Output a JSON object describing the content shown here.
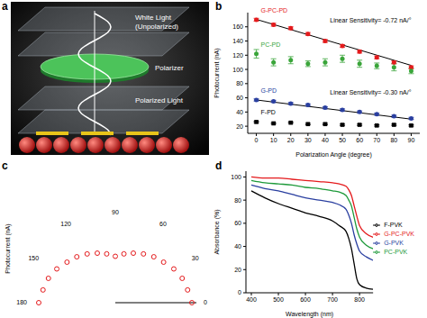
{
  "chart_data": [
    {
      "type": "diagram",
      "panel": "a",
      "labels": [
        "White Light (Unpolarized)",
        "Polarizer",
        "Polarized Light"
      ]
    },
    {
      "type": "scatter",
      "panel": "b",
      "x_label": "Polarization Angle (degree)",
      "y_label": "Photocurrent (nA)",
      "x": [
        0,
        10,
        20,
        30,
        40,
        50,
        60,
        70,
        80,
        90
      ],
      "xlim": [
        -5,
        95
      ],
      "xticks": [
        0,
        10,
        20,
        30,
        40,
        50,
        60,
        70,
        80,
        90
      ],
      "ylim": [
        10,
        180
      ],
      "yticks": [
        20,
        40,
        60,
        80,
        100,
        120,
        140,
        160
      ],
      "series": [
        {
          "name": "G-PC-PD",
          "color": "#e41a1c",
          "marker": "circle",
          "line_style": "none",
          "values": [
            170,
            163,
            158,
            150,
            140,
            133,
            125,
            117,
            110,
            103
          ],
          "errors": [
            2,
            2,
            2,
            2,
            2,
            2,
            2,
            2,
            2,
            2
          ],
          "fit": [
            170.5,
            163.3,
            156.1,
            148.9,
            141.7,
            134.5,
            127.3,
            120.1,
            112.9,
            105.7
          ]
        },
        {
          "name": "PC-PD",
          "color": "#3aa53a",
          "marker": "circle",
          "line_style": "none",
          "values": [
            122,
            110,
            113,
            108,
            110,
            115,
            108,
            105,
            103,
            98
          ],
          "errors": [
            6,
            5,
            5,
            4,
            5,
            5,
            5,
            4,
            5,
            4
          ]
        },
        {
          "name": "G-PD",
          "color": "#2a3fa0",
          "marker": "circle",
          "line_style": "none",
          "values": [
            57,
            55,
            52,
            50,
            46,
            43,
            40,
            37,
            34,
            31
          ],
          "errors": [
            1.5,
            1.5,
            1.5,
            1.5,
            1.5,
            1.5,
            1.5,
            1.5,
            1.5,
            1.5
          ],
          "fit": [
            57,
            54,
            51,
            48,
            45,
            42,
            39,
            36,
            33,
            30
          ]
        },
        {
          "name": "F-PD",
          "color": "#000000",
          "marker": "square",
          "line_style": "none",
          "values": [
            26,
            24,
            25,
            23,
            23,
            22,
            22,
            21,
            22,
            21
          ],
          "errors": [
            1,
            1,
            1,
            1,
            1,
            1,
            1,
            1,
            1,
            1
          ]
        }
      ],
      "annotations": [
        {
          "text": "Linear Sensitivity= -0.72 nA/°",
          "series": "G-PC-PD"
        },
        {
          "text": "Linear Sensitivity= -0.30 nA/°",
          "series": "G-PD"
        }
      ]
    },
    {
      "type": "polar",
      "panel": "c",
      "y_label": "Photocurrent (nA)",
      "x": [
        0,
        10,
        20,
        30,
        40,
        50,
        60,
        70,
        80,
        90,
        100,
        110,
        120,
        130,
        140,
        150,
        160,
        170,
        180
      ],
      "values": [
        170,
        163,
        158,
        150,
        140,
        133,
        125,
        117,
        110,
        103,
        110,
        117,
        125,
        133,
        140,
        150,
        158,
        163,
        170
      ],
      "color": "#e41a1c",
      "marker": "circle",
      "line_style": "none",
      "xlim": [
        0,
        180
      ],
      "xticks": [
        0,
        30,
        60,
        90,
        120,
        150,
        180
      ],
      "ylim": [
        0,
        180
      ],
      "tick_labels": "x"
    },
    {
      "type": "line",
      "panel": "d",
      "x_label": "Wavelength (nm)",
      "y_label": "Absorbance (%)",
      "x": [
        400,
        450,
        500,
        550,
        600,
        650,
        700,
        725,
        750,
        760,
        770,
        780,
        790,
        800,
        825,
        850
      ],
      "xlim": [
        380,
        850
      ],
      "xticks": [
        400,
        500,
        600,
        700,
        800
      ],
      "ylim": [
        0,
        105
      ],
      "yticks": [
        0,
        20,
        40,
        60,
        80,
        100
      ],
      "legend": "right",
      "series": [
        {
          "name": "G-PC-PVK",
          "color": "#e41a1c",
          "values": [
            100,
            99,
            99,
            98,
            97,
            96,
            95,
            94,
            92,
            89,
            84,
            75,
            66,
            58,
            51,
            48
          ]
        },
        {
          "name": "PC-PVK",
          "color": "#1e9a3a",
          "values": [
            97,
            95,
            94,
            93,
            91,
            90,
            88,
            87,
            84,
            80,
            75,
            65,
            55,
            48,
            41,
            38
          ]
        },
        {
          "name": "G-PVK",
          "color": "#2a3fa0",
          "values": [
            93,
            90,
            88,
            85,
            82,
            80,
            78,
            76,
            72,
            67,
            60,
            50,
            42,
            36,
            31,
            28
          ]
        },
        {
          "name": "F-PVK",
          "color": "#000000",
          "values": [
            88,
            82,
            77,
            73,
            69,
            66,
            62,
            58,
            53,
            47,
            38,
            25,
            12,
            7,
            4,
            3
          ]
        }
      ]
    }
  ]
}
